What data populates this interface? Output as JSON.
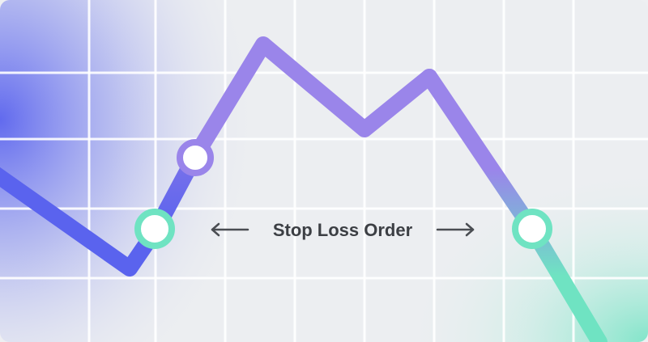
{
  "illustration": {
    "label": "Stop Loss Order",
    "colors": {
      "background": "#eceef1",
      "grid": "#ffffff",
      "blue": "#5a63ee",
      "purple": "#9a85ea",
      "teal": "#6fe3c2",
      "text": "#3c3f44",
      "arrow": "#4a4d52"
    },
    "icons": [
      "left-arrow-icon",
      "right-arrow-icon"
    ]
  }
}
